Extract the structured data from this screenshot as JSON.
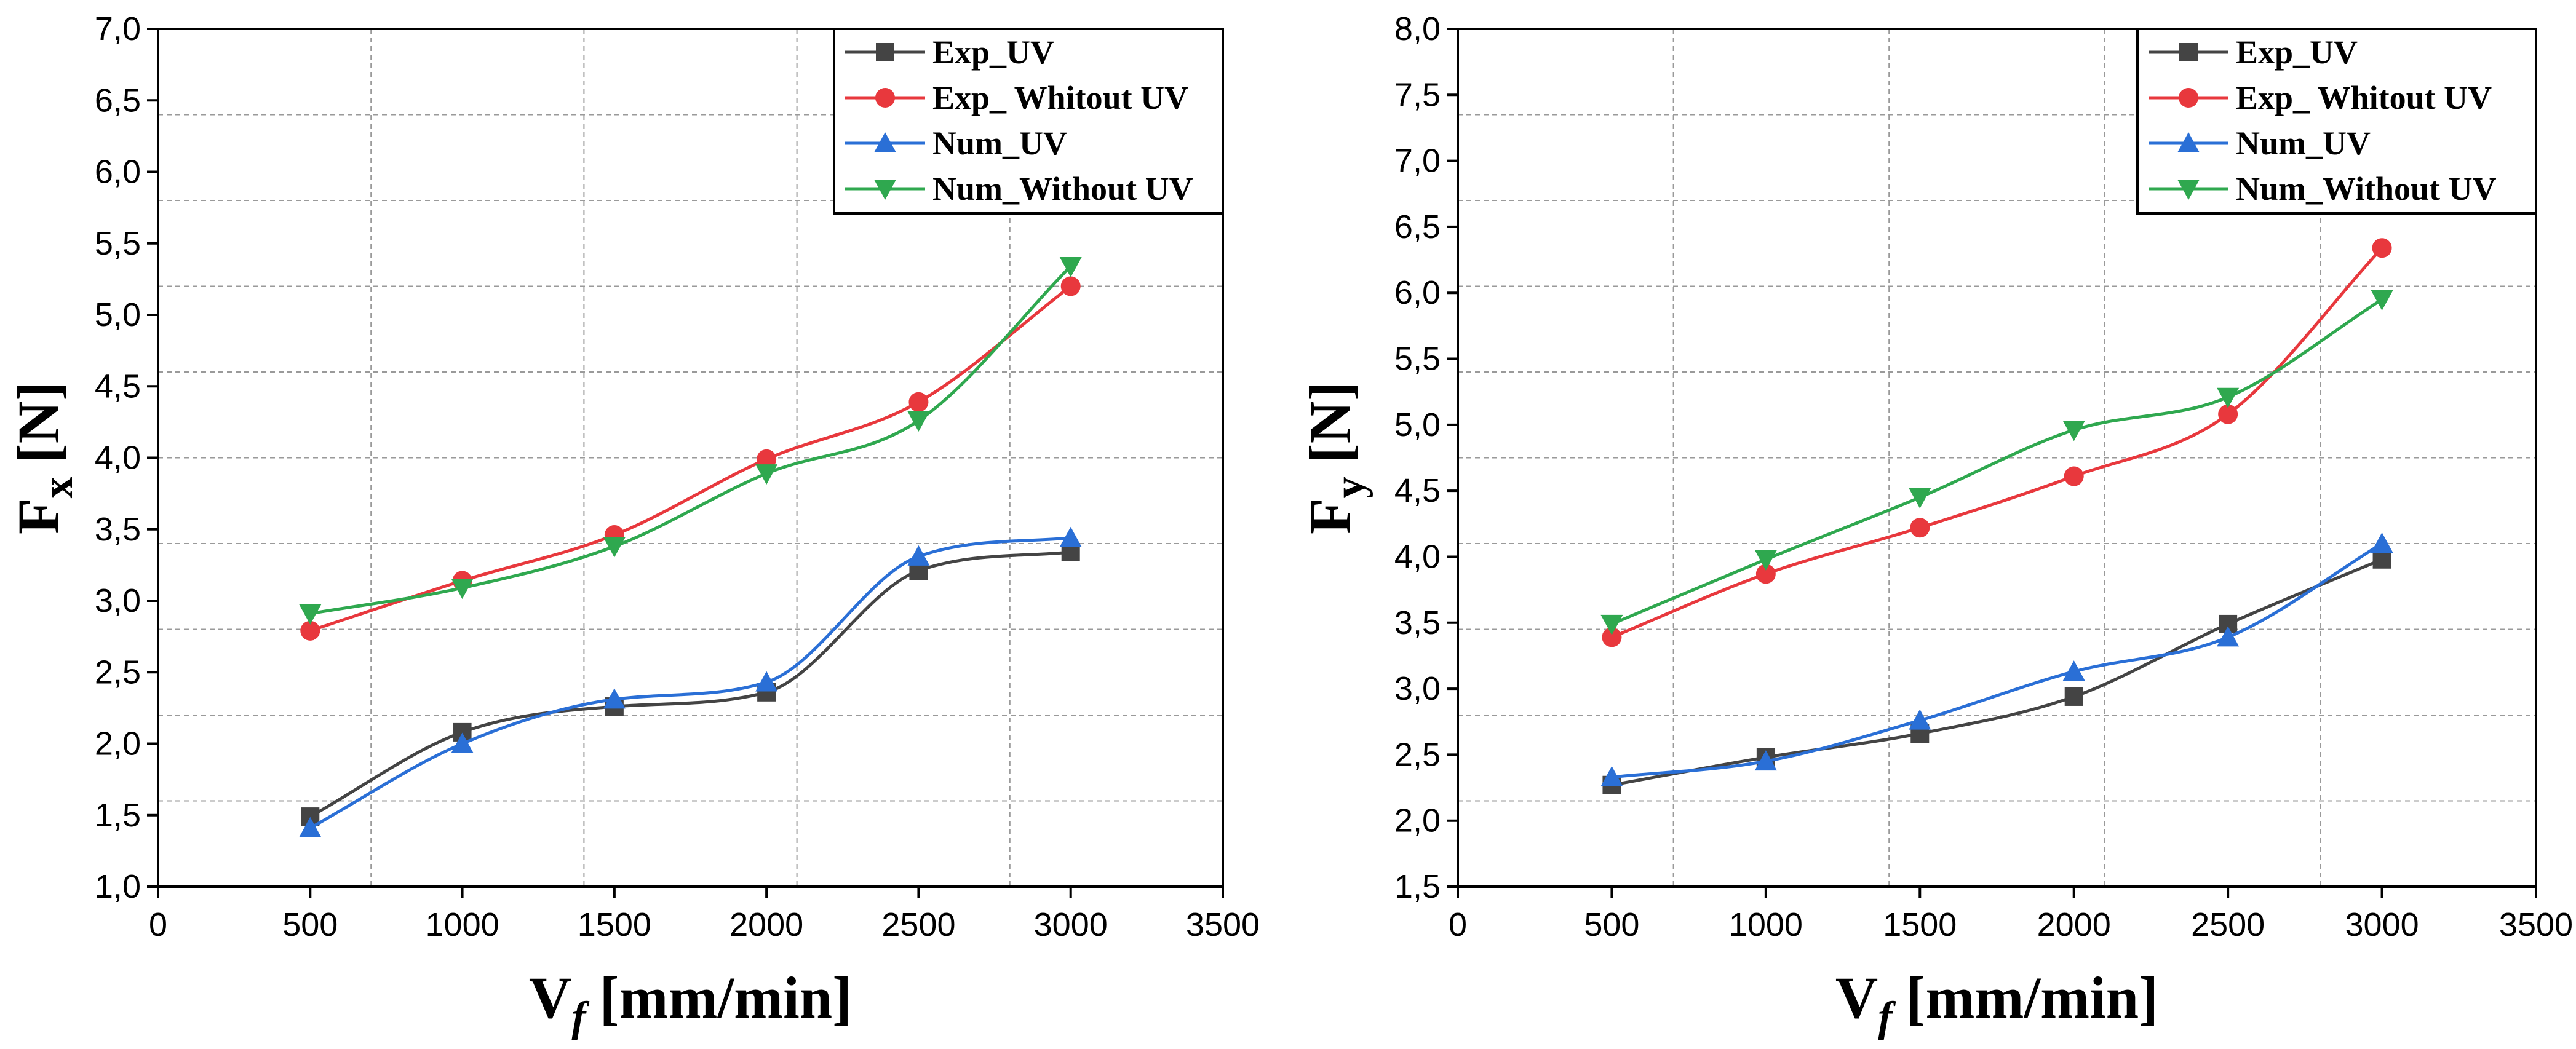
{
  "chart_data": [
    {
      "type": "line",
      "title": "",
      "xlabel": "V",
      "xlabel_sub": "f",
      "xlabel_unit": "[mm/min]",
      "ylabel": "F",
      "ylabel_sub": "x",
      "ylabel_unit": "[N]",
      "xlim": [
        0,
        3500
      ],
      "ylim": [
        1.0,
        7.0
      ],
      "x_ticks": [
        0,
        500,
        1000,
        1500,
        2000,
        2500,
        3000,
        3500
      ],
      "x_tick_labels": [
        "0",
        "500",
        "1000",
        "1500",
        "2000",
        "2500",
        "3000",
        "3500"
      ],
      "y_ticks": [
        1.0,
        1.5,
        2.0,
        2.5,
        3.0,
        3.5,
        4.0,
        4.5,
        5.0,
        5.5,
        6.0,
        6.5,
        7.0
      ],
      "y_tick_labels": [
        "1,0",
        "1,5",
        "2,0",
        "2,5",
        "3,0",
        "3,5",
        "4,0",
        "4,5",
        "5,0",
        "5,5",
        "6,0",
        "6,5",
        "7,0"
      ],
      "grid_x": [
        700,
        1400,
        2100,
        2800
      ],
      "grid_y": [
        1.6,
        2.2,
        2.8,
        3.4,
        4.0,
        4.6,
        5.2,
        5.8,
        6.4
      ],
      "grid": "dashed",
      "legend": "top-right",
      "x": [
        500,
        1000,
        1500,
        2000,
        2500,
        3000
      ],
      "series": [
        {
          "name": "Exp_UV",
          "values": [
            1.49,
            2.08,
            2.26,
            2.36,
            3.21,
            3.34
          ],
          "color": "#444444",
          "marker": "square"
        },
        {
          "name": "Exp_ Whitout UV",
          "values": [
            2.79,
            3.14,
            3.46,
            3.99,
            4.39,
            5.2
          ],
          "color": "#e8383d",
          "marker": "circle"
        },
        {
          "name": "Num_UV",
          "values": [
            1.41,
            2.0,
            2.31,
            2.43,
            3.31,
            3.44
          ],
          "color": "#2a6fd6",
          "marker": "triangle-up"
        },
        {
          "name": "Num_Without UV",
          "values": [
            2.91,
            3.09,
            3.38,
            3.89,
            4.26,
            5.34
          ],
          "color": "#2fa84f",
          "marker": "triangle-down"
        }
      ]
    },
    {
      "type": "line",
      "title": "",
      "xlabel": "V",
      "xlabel_sub": "f",
      "xlabel_unit": "[mm/min]",
      "ylabel": "F",
      "ylabel_sub": "y",
      "ylabel_unit": "[N]",
      "xlim": [
        0,
        3500
      ],
      "ylim": [
        1.5,
        8.0
      ],
      "x_ticks": [
        0,
        500,
        1000,
        1500,
        2000,
        2500,
        3000,
        3500
      ],
      "x_tick_labels": [
        "0",
        "500",
        "1000",
        "1500",
        "2000",
        "2500",
        "3000",
        "3500"
      ],
      "y_ticks": [
        1.5,
        2.0,
        2.5,
        3.0,
        3.5,
        4.0,
        4.5,
        5.0,
        5.5,
        6.0,
        6.5,
        7.0,
        7.5,
        8.0
      ],
      "y_tick_labels": [
        "1,5",
        "2,0",
        "2,5",
        "3,0",
        "3,5",
        "4,0",
        "4,5",
        "5,0",
        "5,5",
        "6,0",
        "6,5",
        "7,0",
        "7,5",
        "8,0"
      ],
      "grid_x": [
        700,
        1400,
        2100,
        2800
      ],
      "grid_y": [
        2.15,
        2.8,
        3.45,
        4.1,
        4.75,
        5.4,
        6.05,
        6.7,
        7.35
      ],
      "grid": "dashed",
      "legend": "top-right",
      "x": [
        500,
        1000,
        1500,
        2000,
        2500,
        3000
      ],
      "series": [
        {
          "name": "Exp_UV",
          "values": [
            2.27,
            2.48,
            2.66,
            2.94,
            3.49,
            3.98
          ],
          "color": "#444444",
          "marker": "square"
        },
        {
          "name": "Exp_ Whitout UV",
          "values": [
            3.39,
            3.87,
            4.22,
            4.61,
            5.08,
            6.34
          ],
          "color": "#e8383d",
          "marker": "circle"
        },
        {
          "name": "Num_UV",
          "values": [
            2.33,
            2.45,
            2.76,
            3.13,
            3.39,
            4.1
          ],
          "color": "#2a6fd6",
          "marker": "triangle-up"
        },
        {
          "name": "Num_Without UV",
          "values": [
            3.49,
            3.98,
            4.45,
            4.96,
            5.21,
            5.95
          ],
          "color": "#2fa84f",
          "marker": "triangle-down"
        }
      ]
    }
  ]
}
